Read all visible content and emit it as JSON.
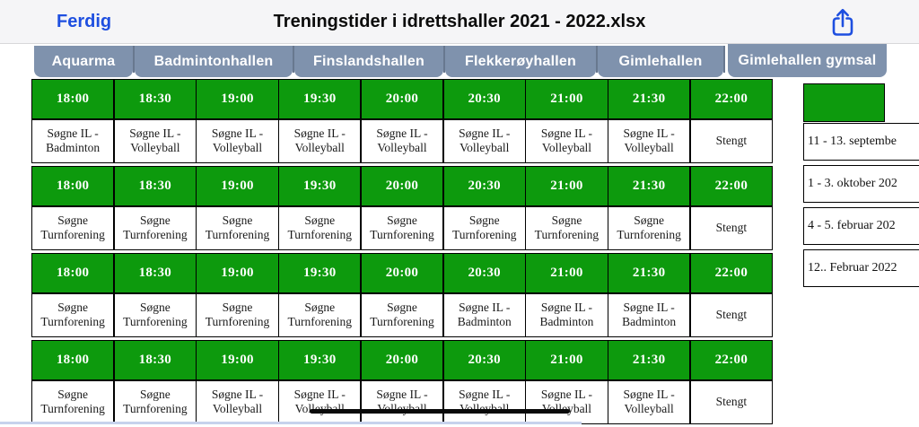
{
  "header": {
    "done_label": "Ferdig",
    "title": "Treningstider i idrettshaller 2021 - 2022.xlsx"
  },
  "tabs": {
    "items": [
      "Aquarma",
      "Badmintonhallen",
      "Finslandshallen",
      "Flekkerøyhallen",
      "Gimlehallen",
      "Gimlehallen gymsal"
    ],
    "active": "Gimlehallen gymsal"
  },
  "schedule": {
    "times": [
      "18:00",
      "18:30",
      "19:00",
      "19:30",
      "20:00",
      "20:30",
      "21:00",
      "21:30",
      "22:00"
    ],
    "blocks": [
      {
        "activities": [
          "Søgne IL - Badminton",
          "Søgne IL - Volleyball",
          "Søgne IL - Volleyball",
          "Søgne IL - Volleyball",
          "Søgne IL - Volleyball",
          "Søgne IL - Volleyball",
          "Søgne IL - Volleyball",
          "Søgne IL - Volleyball",
          "Stengt"
        ]
      },
      {
        "activities": [
          "Søgne Turnforening",
          "Søgne Turnforening",
          "Søgne Turnforening",
          "Søgne Turnforening",
          "Søgne Turnforening",
          "Søgne Turnforening",
          "Søgne Turnforening",
          "Søgne Turnforening",
          "Stengt"
        ]
      },
      {
        "activities": [
          "Søgne Turnforening",
          "Søgne Turnforening",
          "Søgne Turnforening",
          "Søgne Turnforening",
          "Søgne Turnforening",
          "Søgne IL - Badminton",
          "Søgne IL - Badminton",
          "Søgne IL - Badminton",
          "Stengt"
        ]
      },
      {
        "activities": [
          "Søgne Turnforening",
          "Søgne Turnforening",
          "Søgne IL - Volleyball",
          "Søgne IL - Volleyball",
          "Søgne IL - Volleyball",
          "Søgne IL - Volleyball",
          "Søgne IL - Volleyball",
          "Søgne IL - Volleyball",
          "Stengt"
        ]
      }
    ]
  },
  "sidebar": {
    "dates": [
      "11 - 13. septembe",
      "1 - 3. oktober 202",
      "4 - 5. februar 202",
      "12.. Februar 2022"
    ]
  },
  "colors": {
    "green": "#0d9a0d",
    "tab_slate": "#7f92ad",
    "accent_blue": "#1e4fe0"
  },
  "icons": {
    "share": "share-up-arrow-icon"
  }
}
